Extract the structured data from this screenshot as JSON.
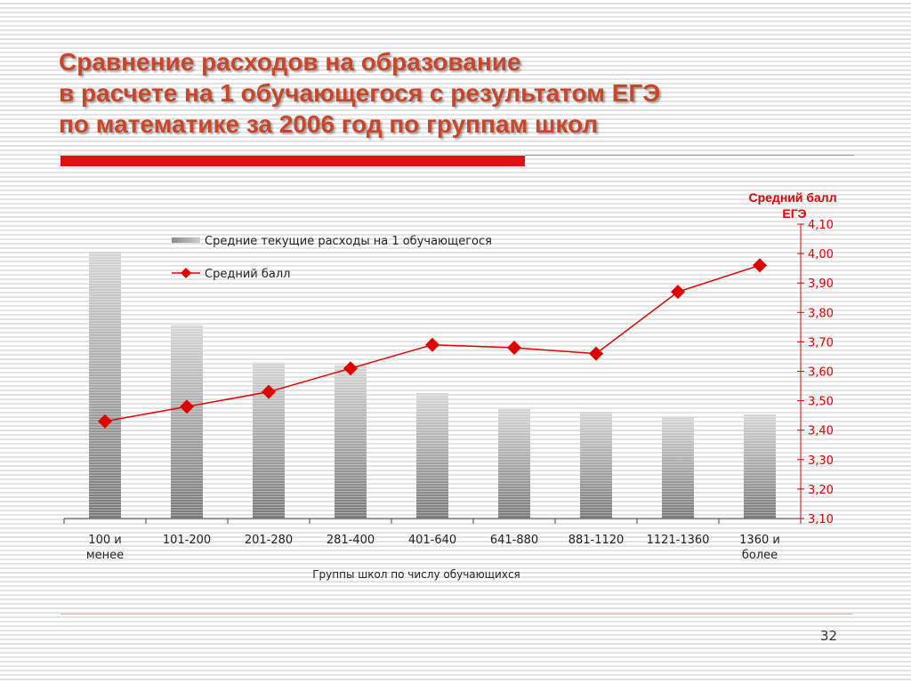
{
  "slide": {
    "title_lines": [
      "Сравнение расходов на образование",
      "в расчете на 1 обучающегося с результатом ЕГЭ",
      "по математике за 2006 год по группам школ"
    ],
    "page_number": "32",
    "colors": {
      "title": "#c8472b",
      "accent_bar": "#dd1111",
      "line_series": "#e00000"
    }
  },
  "chart_data": {
    "type": "bar",
    "categories": [
      "100 и менее",
      "101-200",
      "201-280",
      "281-400",
      "401-640",
      "641-880",
      "881-1120",
      "1121-1360",
      "1360 и более"
    ],
    "xlabel": "Группы школ по числу обучающихся",
    "series": [
      {
        "name": "Средние текущие расходы на 1 обучающегося",
        "type": "bar",
        "axis": "left",
        "values": [
          1.0,
          0.725,
          0.585,
          0.575,
          0.47,
          0.41,
          0.4,
          0.38,
          0.39
        ]
      },
      {
        "name": "Средний балл",
        "type": "line",
        "axis": "right",
        "values": [
          3.43,
          3.48,
          3.53,
          3.61,
          3.69,
          3.68,
          3.66,
          3.87,
          3.96
        ]
      }
    ],
    "y2label": "Средний балл ЕГЭ",
    "y2lim": [
      3.1,
      4.1
    ],
    "y2ticks": [
      "3,10",
      "3,20",
      "3,30",
      "3,40",
      "3,50",
      "3,60",
      "3,70",
      "3,80",
      "3,90",
      "4,00",
      "4,10"
    ],
    "legend_position": "top-left",
    "grid": false
  }
}
